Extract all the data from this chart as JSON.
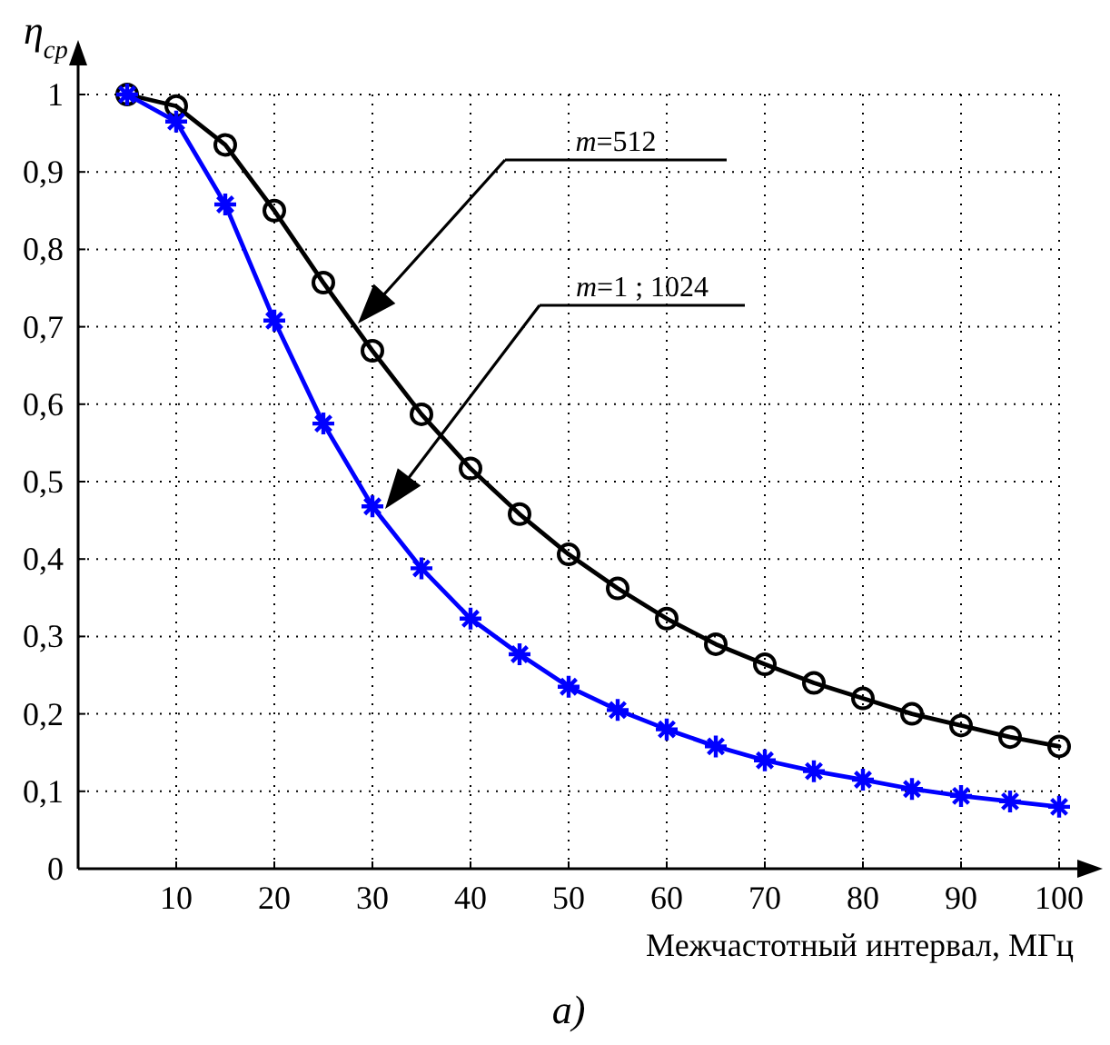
{
  "chart_data": {
    "type": "line",
    "xlabel": "Межчастотный интервал, МГц",
    "ylabel": "η$_{ср}$",
    "x": [
      5,
      10,
      15,
      20,
      25,
      30,
      35,
      40,
      45,
      50,
      55,
      60,
      65,
      70,
      75,
      80,
      85,
      90,
      95,
      100
    ],
    "series": [
      {
        "color": "#000000",
        "marker": "circle",
        "values": [
          1,
          0.985,
          0.935,
          0.85,
          0.757,
          0.669,
          0.587,
          0.517,
          0.458,
          0.406,
          0.362,
          0.323,
          0.29,
          0.264,
          0.24,
          0.22,
          0.2,
          0.185,
          0.17,
          0.158
        ]
      },
      {
        "color": "#0000ff",
        "marker": "cross",
        "values": [
          1,
          0.965,
          0.858,
          0.708,
          0.575,
          0.468,
          0.388,
          0.323,
          0.277,
          0.235,
          0.205,
          0.18,
          0.158,
          0.14,
          0.126,
          0.115,
          0.103,
          0.094,
          0.087,
          0.08
        ]
      }
    ],
    "xlim": [
      0,
      100
    ],
    "xticks": [
      10,
      20,
      30,
      40,
      50,
      60,
      70,
      80,
      90,
      100
    ],
    "ylim": [
      0,
      1
    ],
    "yticks": [
      {
        "value": 0,
        "label": "0"
      },
      {
        "value": 0.1,
        "label": "0,1"
      },
      {
        "value": 0.2,
        "label": "0,2"
      },
      {
        "value": 0.3,
        "label": "0,3"
      },
      {
        "value": 0.4,
        "label": "0,4"
      },
      {
        "value": 0.5,
        "label": "0,5"
      },
      {
        "value": 0.6,
        "label": "0,6"
      },
      {
        "value": 0.7,
        "label": "0,7"
      },
      {
        "value": 0.8,
        "label": "0,8"
      },
      {
        "value": 0.9,
        "label": "0,9"
      },
      {
        "value": 1,
        "label": "1"
      }
    ],
    "grid": true,
    "annotations": [
      "m=512",
      "m=1 ; 1024",
      "а)"
    ]
  }
}
